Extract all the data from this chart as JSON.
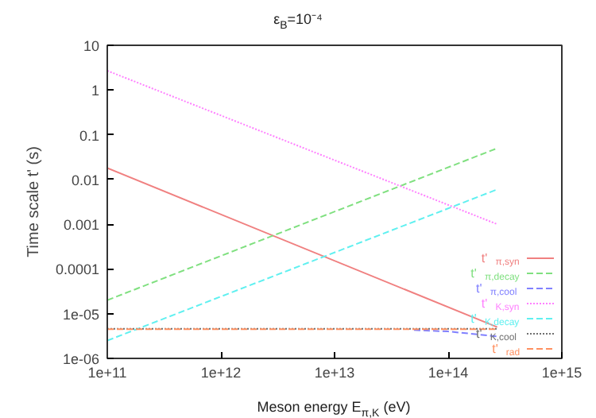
{
  "chart_data": {
    "type": "line",
    "title": "ε$_{B}$=10⁻⁴",
    "xlabel": "Meson energy E$_{π,K}$ (eV)",
    "ylabel": "Time scale t' (s)",
    "log": "xy",
    "grid": false,
    "legend": "bottom right",
    "xlim": [
      100000000000.0,
      1000000000000000.0
    ],
    "ylim": [
      1e-06,
      10
    ],
    "xticks": [
      {
        "value": 100000000000.0,
        "label": "1e+11"
      },
      {
        "value": 1000000000000.0,
        "label": "1e+12"
      },
      {
        "value": 10000000000000.0,
        "label": "1e+13"
      },
      {
        "value": 100000000000000.0,
        "label": "1e+14"
      },
      {
        "value": 1000000000000000.0,
        "label": "1e+15"
      }
    ],
    "yticks": [
      {
        "value": 1e-06,
        "label": "1e-06"
      },
      {
        "value": 1e-05,
        "label": "1e-05"
      },
      0.0001,
      0.001,
      0.01,
      0.1,
      1,
      10
    ],
    "series": [
      {
        "name": "t'$_{π,syn}$",
        "color": "#f08080",
        "line_style": "solid",
        "x": [
          100000000000.0,
          270000000000000.0
        ],
        "values": [
          0.018,
          5e-06
        ]
      },
      {
        "name": "t'$_{π,decay}$",
        "color": "#80e080",
        "line_style": "dashed",
        "x": [
          100000000000.0,
          270000000000000.0
        ],
        "values": [
          2e-05,
          0.05
        ]
      },
      {
        "name": "t'$_{π,cool}$",
        "color": "#8080ff",
        "line_style": "dashed",
        "x": [
          50000000000000.0,
          100000000000000.0,
          270000000000000.0
        ],
        "values": [
          4.3e-06,
          4e-06,
          3.1e-06
        ]
      },
      {
        "name": "t'$_{K,syn}$",
        "color": "#ff80ff",
        "line_style": "dotted",
        "x": [
          100000000000.0,
          270000000000000.0
        ],
        "values": [
          2.7,
          0.001
        ]
      },
      {
        "name": "t'$_{K,decay}$",
        "color": "#60f0f0",
        "line_style": "dashed",
        "x": [
          100000000000.0,
          270000000000000.0
        ],
        "values": [
          2.5e-06,
          0.006
        ]
      },
      {
        "name": "t'$_{K,cool}$",
        "color": "#707070",
        "line_style": "dotted",
        "x": [
          100000000000.0,
          270000000000000.0
        ],
        "values": [
          4.6e-06,
          4.6e-06
        ]
      },
      {
        "name": "t'$_{rad}$",
        "color": "#ff9060",
        "line_style": "dashed",
        "x": [
          100000000000.0,
          270000000000000.0
        ],
        "values": [
          4.5e-06,
          4.5e-06
        ]
      }
    ]
  }
}
